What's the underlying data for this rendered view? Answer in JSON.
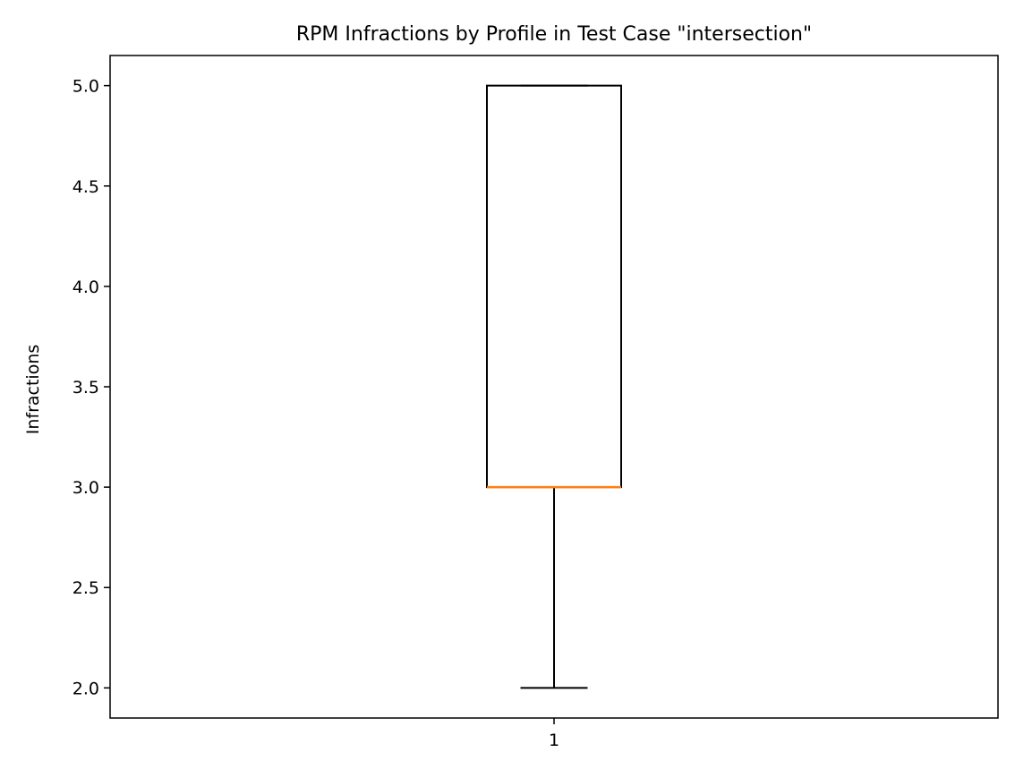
{
  "chart_data": {
    "type": "box",
    "title": "RPM Infractions by Profile in Test Case \"intersection\"",
    "xlabel": "",
    "ylabel": "Infractions",
    "ylim": [
      1.85,
      5.15
    ],
    "y_ticks": [
      "2.0",
      "2.5",
      "3.0",
      "3.5",
      "4.0",
      "4.5",
      "5.0"
    ],
    "x_ticks": [
      "1"
    ],
    "grid": false,
    "series": [
      {
        "category": "1",
        "whisker_low": 2,
        "q1": 3,
        "median": 3,
        "q3": 5,
        "whisker_high": 5
      }
    ],
    "colors": {
      "box": "#000000",
      "median": "#ff7f0e",
      "whisker": "#000000"
    }
  }
}
